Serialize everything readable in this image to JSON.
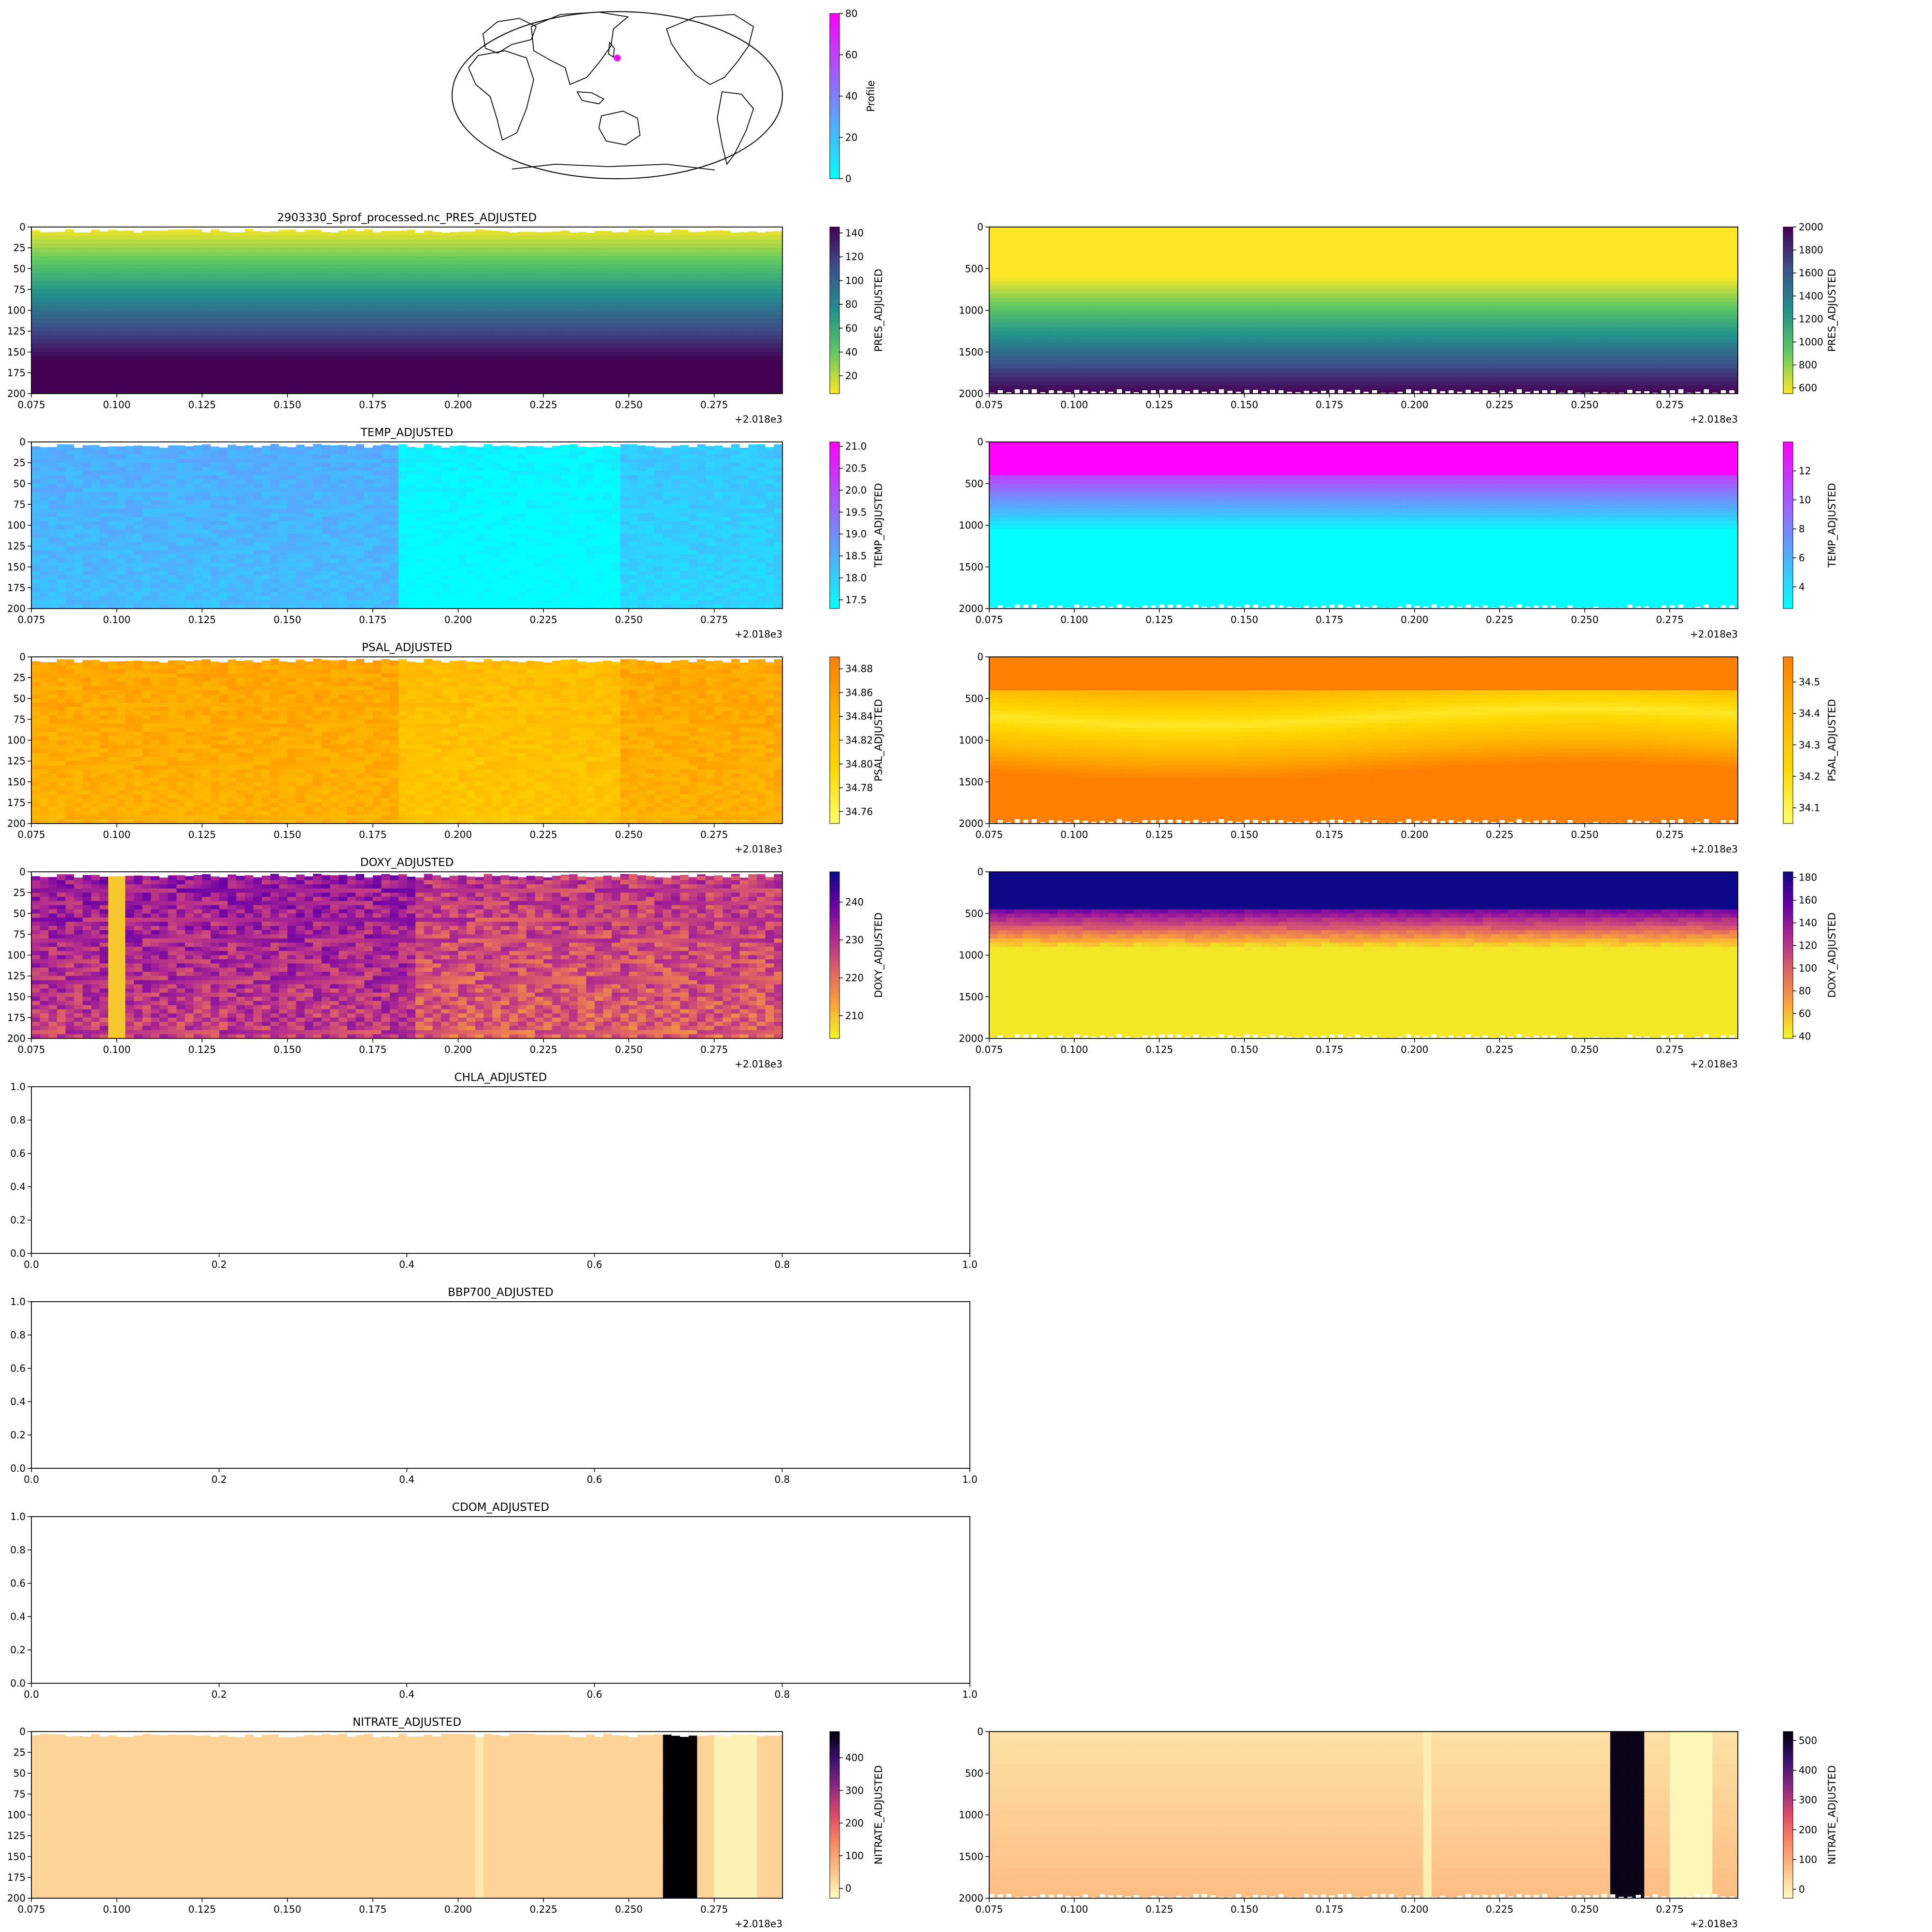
{
  "figure_suffix": "+2.018e3",
  "map": {
    "colorbar": {
      "label": "Profile",
      "ticks": [
        "0",
        "20",
        "40",
        "60",
        "80"
      ],
      "cmap": [
        "#00ffff",
        "#ff00ff"
      ]
    },
    "marker_color": "#ff00ff"
  },
  "chart_data": [
    {
      "id": "pres-shallow",
      "type": "heatmap",
      "title": "2903330_Sprof_processed.nc_PRES_ADJUSTED",
      "x": [
        0.075,
        0.295
      ],
      "x_ticks": [
        "0.075",
        "0.100",
        "0.125",
        "0.150",
        "0.175",
        "0.200",
        "0.225",
        "0.250",
        "0.275"
      ],
      "y_range": [
        0,
        200
      ],
      "y_ticks": [
        "0",
        "25",
        "50",
        "75",
        "100",
        "125",
        "150",
        "175",
        "200"
      ],
      "colorbar": {
        "label": "PRES_ADJUSTED",
        "ticks": [
          "20",
          "40",
          "60",
          "80",
          "100",
          "120",
          "140"
        ],
        "range": [
          5,
          145
        ]
      },
      "cmap": [
        "#fde725",
        "#5ec962",
        "#21918c",
        "#3b528b",
        "#440154"
      ]
    },
    {
      "id": "pres-deep",
      "type": "heatmap",
      "title": "",
      "x": [
        0.075,
        0.295
      ],
      "x_ticks": [
        "0.075",
        "0.100",
        "0.125",
        "0.150",
        "0.175",
        "0.200",
        "0.225",
        "0.250",
        "0.275"
      ],
      "y_range": [
        0,
        2000
      ],
      "y_ticks": [
        "0",
        "500",
        "1000",
        "1500",
        "2000"
      ],
      "colorbar": {
        "label": "PRES_ADJUSTED",
        "ticks": [
          "600",
          "800",
          "1000",
          "1200",
          "1400",
          "1600",
          "1800",
          "2000"
        ],
        "range": [
          550,
          2000
        ]
      },
      "cmap": [
        "#fde725",
        "#5ec962",
        "#21918c",
        "#3b528b",
        "#440154"
      ]
    },
    {
      "id": "temp-shallow",
      "type": "heatmap",
      "title": "TEMP_ADJUSTED",
      "x": [
        0.075,
        0.295
      ],
      "x_ticks": [
        "0.075",
        "0.100",
        "0.125",
        "0.150",
        "0.175",
        "0.200",
        "0.225",
        "0.250",
        "0.275"
      ],
      "y_range": [
        0,
        200
      ],
      "y_ticks": [
        "0",
        "25",
        "50",
        "75",
        "100",
        "125",
        "150",
        "175",
        "200"
      ],
      "colorbar": {
        "label": "TEMP_ADJUSTED",
        "ticks": [
          "17.5",
          "18.0",
          "18.5",
          "19.0",
          "19.5",
          "20.0",
          "20.5",
          "21.0"
        ],
        "range": [
          17.3,
          21.1
        ]
      },
      "cmap": [
        "#00ffff",
        "#ff00ff"
      ]
    },
    {
      "id": "temp-deep",
      "type": "heatmap",
      "title": "",
      "x": [
        0.075,
        0.295
      ],
      "x_ticks": [
        "0.075",
        "0.100",
        "0.125",
        "0.150",
        "0.175",
        "0.200",
        "0.225",
        "0.250",
        "0.275"
      ],
      "y_range": [
        0,
        2000
      ],
      "y_ticks": [
        "0",
        "500",
        "1000",
        "1500",
        "2000"
      ],
      "colorbar": {
        "label": "TEMP_ADJUSTED",
        "ticks": [
          "4",
          "6",
          "8",
          "10",
          "12"
        ],
        "range": [
          2.5,
          14
        ]
      },
      "cmap": [
        "#00ffff",
        "#ff00ff"
      ]
    },
    {
      "id": "psal-shallow",
      "type": "heatmap",
      "title": "PSAL_ADJUSTED",
      "x": [
        0.075,
        0.295
      ],
      "x_ticks": [
        "0.075",
        "0.100",
        "0.125",
        "0.150",
        "0.175",
        "0.200",
        "0.225",
        "0.250",
        "0.275"
      ],
      "y_range": [
        0,
        200
      ],
      "y_ticks": [
        "0",
        "25",
        "50",
        "75",
        "100",
        "125",
        "150",
        "175",
        "200"
      ],
      "colorbar": {
        "label": "PSAL_ADJUSTED",
        "ticks": [
          "34.76",
          "34.78",
          "34.80",
          "34.82",
          "34.84",
          "34.86",
          "34.88"
        ],
        "range": [
          34.75,
          34.89
        ]
      },
      "cmap": [
        "#ffff66",
        "#ffd700",
        "#ffb300",
        "#ff7f00"
      ]
    },
    {
      "id": "psal-deep",
      "type": "heatmap",
      "title": "",
      "x": [
        0.075,
        0.295
      ],
      "x_ticks": [
        "0.075",
        "0.100",
        "0.125",
        "0.150",
        "0.175",
        "0.200",
        "0.225",
        "0.250",
        "0.275"
      ],
      "y_range": [
        0,
        2000
      ],
      "y_ticks": [
        "0",
        "500",
        "1000",
        "1500",
        "2000"
      ],
      "colorbar": {
        "label": "PSAL_ADJUSTED",
        "ticks": [
          "34.1",
          "34.2",
          "34.3",
          "34.4",
          "34.5"
        ],
        "range": [
          34.05,
          34.58
        ]
      },
      "cmap": [
        "#ffff66",
        "#ffd700",
        "#ffb300",
        "#ff7f00"
      ]
    },
    {
      "id": "doxy-shallow",
      "type": "heatmap",
      "title": "DOXY_ADJUSTED",
      "x": [
        0.075,
        0.295
      ],
      "x_ticks": [
        "0.075",
        "0.100",
        "0.125",
        "0.150",
        "0.175",
        "0.200",
        "0.225",
        "0.250",
        "0.275"
      ],
      "y_range": [
        0,
        200
      ],
      "y_ticks": [
        "0",
        "25",
        "50",
        "75",
        "100",
        "125",
        "150",
        "175",
        "200"
      ],
      "colorbar": {
        "label": "DOXY_ADJUSTED",
        "ticks": [
          "210",
          "220",
          "230",
          "240"
        ],
        "range": [
          204,
          248
        ]
      },
      "cmap": [
        "#f0f921",
        "#fca636",
        "#e16462",
        "#b12a90",
        "#6a00a8",
        "#0d0887"
      ]
    },
    {
      "id": "doxy-deep",
      "type": "heatmap",
      "title": "",
      "x": [
        0.075,
        0.295
      ],
      "x_ticks": [
        "0.075",
        "0.100",
        "0.125",
        "0.150",
        "0.175",
        "0.200",
        "0.225",
        "0.250",
        "0.275"
      ],
      "y_range": [
        0,
        2000
      ],
      "y_ticks": [
        "0",
        "500",
        "1000",
        "1500",
        "2000"
      ],
      "colorbar": {
        "label": "DOXY_ADJUSTED",
        "ticks": [
          "40",
          "60",
          "80",
          "100",
          "120",
          "140",
          "160",
          "180"
        ],
        "range": [
          38,
          185
        ]
      },
      "cmap": [
        "#f0f921",
        "#fca636",
        "#e16462",
        "#b12a90",
        "#6a00a8",
        "#0d0887"
      ]
    },
    {
      "id": "chla",
      "type": "empty",
      "title": "CHLA_ADJUSTED",
      "x_ticks": [
        "0.0",
        "0.2",
        "0.4",
        "0.6",
        "0.8",
        "1.0"
      ],
      "y_ticks": [
        "0.0",
        "0.2",
        "0.4",
        "0.6",
        "0.8",
        "1.0"
      ]
    },
    {
      "id": "bbp700",
      "type": "empty",
      "title": "BBP700_ADJUSTED",
      "x_ticks": [
        "0.0",
        "0.2",
        "0.4",
        "0.6",
        "0.8",
        "1.0"
      ],
      "y_ticks": [
        "0.0",
        "0.2",
        "0.4",
        "0.6",
        "0.8",
        "1.0"
      ]
    },
    {
      "id": "cdom",
      "type": "empty",
      "title": "CDOM_ADJUSTED",
      "x_ticks": [
        "0.0",
        "0.2",
        "0.4",
        "0.6",
        "0.8",
        "1.0"
      ],
      "y_ticks": [
        "0.0",
        "0.2",
        "0.4",
        "0.6",
        "0.8",
        "1.0"
      ]
    },
    {
      "id": "nitrate-shallow",
      "type": "heatmap",
      "title": "NITRATE_ADJUSTED",
      "x": [
        0.075,
        0.295
      ],
      "x_ticks": [
        "0.075",
        "0.100",
        "0.125",
        "0.150",
        "0.175",
        "0.200",
        "0.225",
        "0.250",
        "0.275"
      ],
      "y_range": [
        0,
        200
      ],
      "y_ticks": [
        "0",
        "25",
        "50",
        "75",
        "100",
        "125",
        "150",
        "175",
        "200"
      ],
      "colorbar": {
        "label": "NITRATE_ADJUSTED",
        "ticks": [
          "0",
          "100",
          "200",
          "300",
          "400"
        ],
        "range": [
          -30,
          480
        ]
      },
      "cmap": [
        "#fcfdbf",
        "#fec287",
        "#fb8861",
        "#de4968",
        "#8c2981",
        "#3b0f70",
        "#000004"
      ]
    },
    {
      "id": "nitrate-deep",
      "type": "heatmap",
      "title": "",
      "x": [
        0.075,
        0.295
      ],
      "x_ticks": [
        "0.075",
        "0.100",
        "0.125",
        "0.150",
        "0.175",
        "0.200",
        "0.225",
        "0.250",
        "0.275"
      ],
      "y_range": [
        0,
        2000
      ],
      "y_ticks": [
        "0",
        "500",
        "1000",
        "1500",
        "2000"
      ],
      "colorbar": {
        "label": "NITRATE_ADJUSTED",
        "ticks": [
          "0",
          "100",
          "200",
          "300",
          "400",
          "500"
        ],
        "range": [
          -30,
          530
        ]
      },
      "cmap": [
        "#fcfdbf",
        "#fec287",
        "#fb8861",
        "#de4968",
        "#8c2981",
        "#3b0f70",
        "#000004"
      ]
    }
  ]
}
